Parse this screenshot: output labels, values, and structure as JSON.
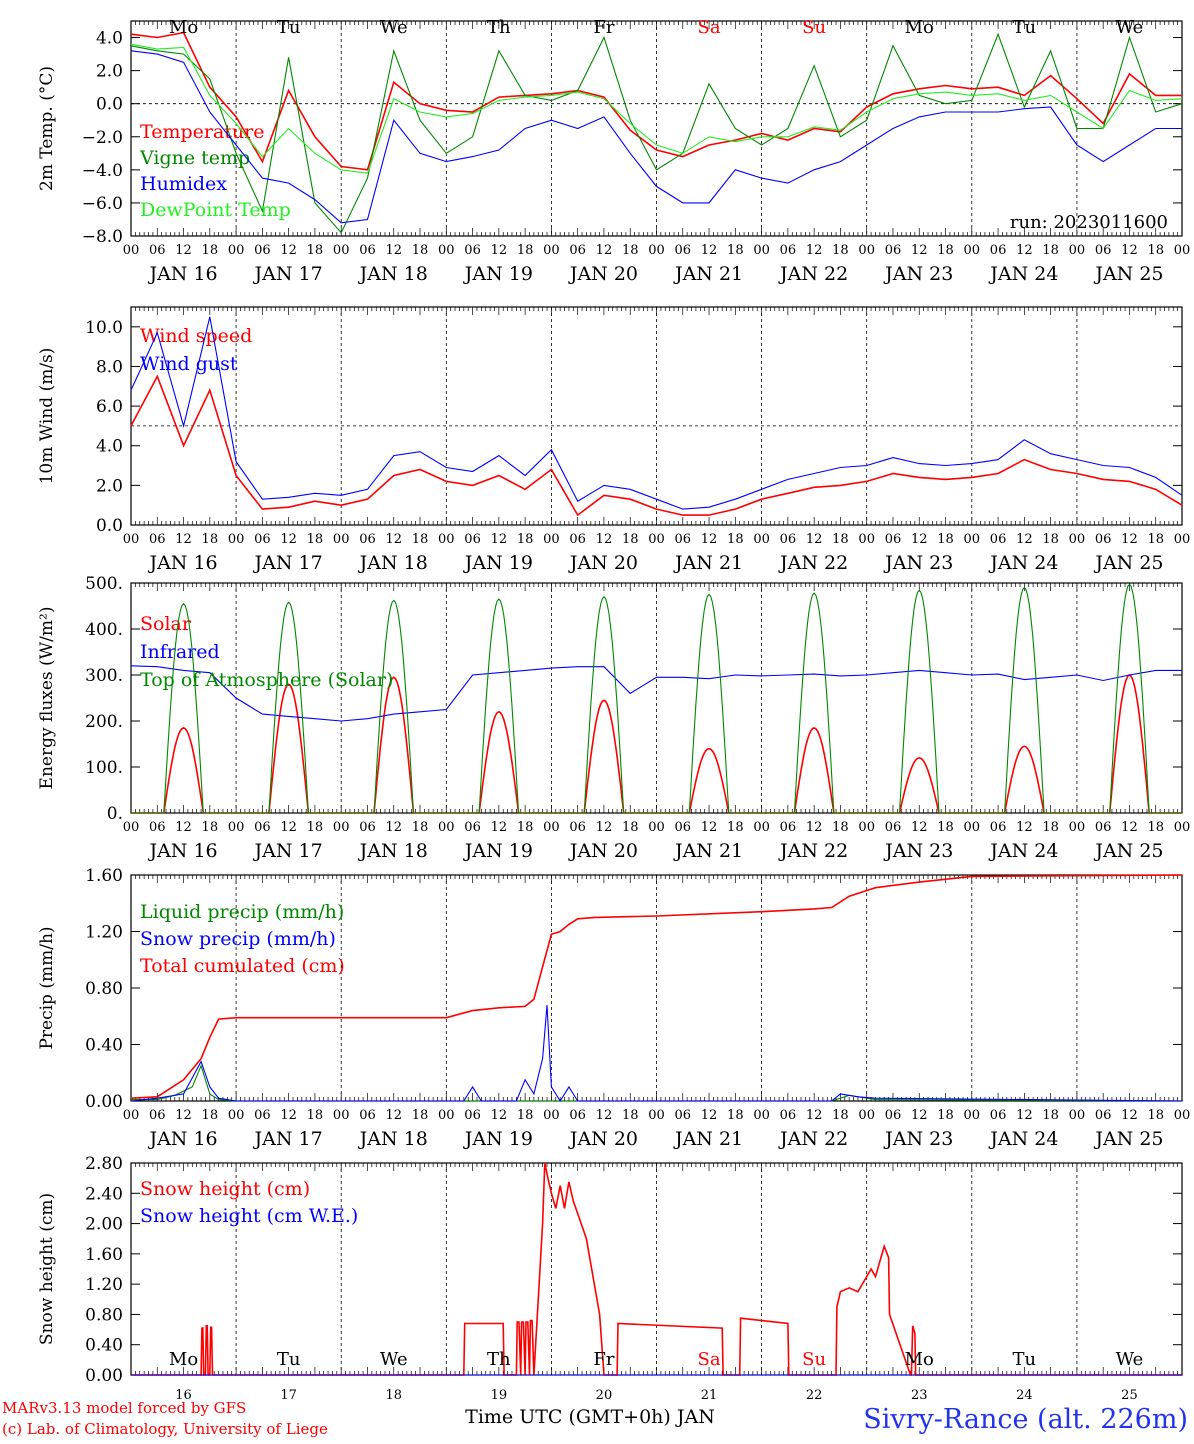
{
  "footer": {
    "model_line1": "MARv3.13 model forced by GFS",
    "model_line2": "(c) Lab. of Climatology, University of Liege",
    "xlabel": "Time UTC (GMT+0h) JAN",
    "station": "Sivry-Rance (alt. 226m)"
  },
  "colors": {
    "red": "#ff0000",
    "green": "#008800",
    "blue": "#0000ff",
    "lightgreen": "#22ee22",
    "black": "#000000"
  },
  "time_axis": {
    "hour_ticks": [
      "00",
      "06",
      "12",
      "18"
    ],
    "dates": [
      "JAN 16",
      "JAN 17",
      "JAN 18",
      "JAN 19",
      "JAN 20",
      "JAN 21",
      "JAN 22",
      "JAN 23",
      "JAN 24",
      "JAN 25"
    ],
    "weekdays": [
      "Mo",
      "Tu",
      "We",
      "Th",
      "Fr",
      "Sa",
      "Su",
      "Mo",
      "Tu",
      "We"
    ],
    "weekday_colors": [
      "black",
      "black",
      "black",
      "black",
      "black",
      "red",
      "red",
      "black",
      "black",
      "black"
    ],
    "day_numbers": [
      "16",
      "17",
      "18",
      "19",
      "20",
      "21",
      "22",
      "23",
      "24",
      "25"
    ]
  },
  "chart_data": [
    {
      "type": "line",
      "ylabel": "2m Temp. (°C)",
      "ylim": [
        -8,
        5
      ],
      "yticks": [
        "4.0",
        "2.0",
        "0.0",
        "−2.0",
        "−4.0",
        "−6.0",
        "−8.0"
      ],
      "ytick_values": [
        4,
        2,
        0,
        -2,
        -4,
        -6,
        -8
      ],
      "reference_line": 0,
      "annotation": "run: 2023011600",
      "x_hours": [
        0,
        6,
        12,
        18,
        24,
        30,
        36,
        42,
        48,
        54,
        60,
        66,
        72,
        78,
        84,
        90,
        96,
        102,
        108,
        114,
        120,
        126,
        132,
        138,
        144,
        150,
        156,
        162,
        168,
        174,
        180,
        186,
        192,
        198,
        204,
        210,
        216,
        222,
        228,
        234,
        240
      ],
      "series": [
        {
          "name": "Temperature",
          "color": "red",
          "values": [
            4.2,
            4.0,
            4.3,
            1.0,
            -0.8,
            -3.5,
            0.8,
            -2.0,
            -3.8,
            -4.0,
            1.3,
            0.0,
            -0.4,
            -0.5,
            0.4,
            0.5,
            0.6,
            0.8,
            0.4,
            -1.6,
            -2.8,
            -3.2,
            -2.5,
            -2.2,
            -1.8,
            -2.2,
            -1.5,
            -1.7,
            -0.2,
            0.6,
            0.9,
            1.1,
            0.9,
            1.0,
            0.5,
            1.7,
            0.3,
            -1.2,
            1.8,
            0.5,
            0.5
          ]
        },
        {
          "name": "Vigne temp",
          "color": "green",
          "values": [
            3.5,
            3.2,
            3.0,
            1.5,
            -3.0,
            -6.5,
            2.8,
            -6.0,
            -7.8,
            -4.5,
            3.2,
            -1.0,
            -3.0,
            -2.0,
            3.2,
            0.5,
            0.2,
            0.8,
            4.0,
            -1.0,
            -4.0,
            -3.0,
            1.2,
            -1.5,
            -2.5,
            -1.5,
            2.3,
            -2.0,
            -1.0,
            3.5,
            0.5,
            0.0,
            0.2,
            4.2,
            -0.2,
            3.2,
            -1.5,
            -1.5,
            4.0,
            -0.5,
            0.0
          ]
        },
        {
          "name": "Humidex",
          "color": "blue",
          "values": [
            3.2,
            3.0,
            2.5,
            -0.5,
            -2.5,
            -4.5,
            -4.8,
            -5.8,
            -7.2,
            -7.0,
            -1.0,
            -3.0,
            -3.5,
            -3.2,
            -2.8,
            -1.5,
            -1.0,
            -1.5,
            -0.8,
            -3.0,
            -5.0,
            -6.0,
            -6.0,
            -4.0,
            -4.5,
            -4.8,
            -4.0,
            -3.5,
            -2.5,
            -1.5,
            -0.8,
            -0.5,
            -0.5,
            -0.5,
            -0.3,
            -0.2,
            -2.5,
            -3.5,
            -2.5,
            -1.5,
            -1.5
          ]
        },
        {
          "name": "DewPoint Temp",
          "color": "lightgreen",
          "values": [
            3.6,
            3.3,
            3.4,
            0.5,
            -1.2,
            -3.2,
            -1.5,
            -3.0,
            -4.0,
            -4.2,
            0.3,
            -0.5,
            -0.8,
            -0.6,
            0.2,
            0.4,
            0.5,
            0.7,
            0.3,
            -1.2,
            -2.5,
            -3.0,
            -2.0,
            -2.3,
            -2.0,
            -2.0,
            -1.4,
            -1.6,
            -0.5,
            0.3,
            0.6,
            0.7,
            0.5,
            0.6,
            0.2,
            0.5,
            -0.5,
            -1.5,
            0.8,
            0.2,
            0.3
          ]
        }
      ]
    },
    {
      "type": "line",
      "ylabel": "10m Wind (m/s)",
      "ylim": [
        0,
        11
      ],
      "yticks": [
        "10.0",
        "8.0",
        "6.0",
        "4.0",
        "2.0",
        "0.0"
      ],
      "ytick_values": [
        10,
        8,
        6,
        4,
        2,
        0
      ],
      "reference_line": 5,
      "x_hours": [
        0,
        6,
        12,
        18,
        24,
        30,
        36,
        42,
        48,
        54,
        60,
        66,
        72,
        78,
        84,
        90,
        96,
        102,
        108,
        114,
        120,
        126,
        132,
        138,
        144,
        150,
        156,
        162,
        168,
        174,
        180,
        186,
        192,
        198,
        204,
        210,
        216,
        222,
        228,
        234,
        240
      ],
      "series": [
        {
          "name": "Wind speed",
          "color": "red",
          "values": [
            5.0,
            7.5,
            4.0,
            6.8,
            2.5,
            0.8,
            0.9,
            1.2,
            1.0,
            1.3,
            2.5,
            2.8,
            2.2,
            2.0,
            2.5,
            1.8,
            2.8,
            0.5,
            1.5,
            1.3,
            0.8,
            0.5,
            0.5,
            0.8,
            1.3,
            1.6,
            1.9,
            2.0,
            2.2,
            2.6,
            2.4,
            2.3,
            2.4,
            2.6,
            3.3,
            2.8,
            2.6,
            2.3,
            2.2,
            1.8,
            1.0
          ]
        },
        {
          "name": "Wind gust",
          "color": "blue",
          "values": [
            6.8,
            9.7,
            5.0,
            10.5,
            3.2,
            1.3,
            1.4,
            1.6,
            1.5,
            1.8,
            3.5,
            3.7,
            2.9,
            2.7,
            3.5,
            2.5,
            3.8,
            1.2,
            2.0,
            1.8,
            1.3,
            0.8,
            0.9,
            1.3,
            1.8,
            2.3,
            2.6,
            2.9,
            3.0,
            3.4,
            3.1,
            3.0,
            3.1,
            3.3,
            4.3,
            3.6,
            3.3,
            3.0,
            2.9,
            2.4,
            1.5
          ]
        }
      ]
    },
    {
      "type": "line",
      "ylabel": "Energy fluxes (W/m²)",
      "ylim": [
        0,
        500
      ],
      "yticks": [
        "500.",
        "400.",
        "300.",
        "200.",
        "100.",
        "0."
      ],
      "ytick_values": [
        500,
        400,
        300,
        200,
        100,
        0
      ],
      "sun_rise_hour": 7.5,
      "sun_set_hour": 16.5,
      "series": [
        {
          "name": "Solar",
          "color": "red",
          "daily_peaks": [
            185,
            280,
            295,
            220,
            245,
            140,
            185,
            120,
            145,
            300
          ]
        },
        {
          "name": "Infrared",
          "color": "blue",
          "x_hours": [
            0,
            6,
            12,
            18,
            24,
            30,
            36,
            42,
            48,
            54,
            60,
            66,
            72,
            78,
            84,
            90,
            96,
            102,
            108,
            114,
            120,
            126,
            132,
            138,
            144,
            150,
            156,
            162,
            168,
            174,
            180,
            186,
            192,
            198,
            204,
            210,
            216,
            222,
            228,
            234,
            240
          ],
          "values": [
            320,
            318,
            310,
            305,
            250,
            215,
            210,
            205,
            200,
            205,
            215,
            220,
            225,
            300,
            305,
            310,
            315,
            318,
            318,
            260,
            295,
            295,
            292,
            300,
            298,
            300,
            302,
            298,
            300,
            305,
            310,
            305,
            300,
            302,
            290,
            295,
            300,
            288,
            300,
            310,
            310
          ]
        },
        {
          "name": "Top of Atmosphere (Solar)",
          "color": "green",
          "daily_peaks": [
            455,
            458,
            462,
            465,
            470,
            475,
            478,
            484,
            490,
            497
          ]
        }
      ]
    },
    {
      "type": "line",
      "ylabel": "Precip (mm/h)",
      "ylim": [
        0,
        1.6
      ],
      "yticks": [
        "1.60",
        "1.20",
        "0.80",
        "0.40",
        "0.00"
      ],
      "ytick_values": [
        1.6,
        1.2,
        0.8,
        0.4,
        0
      ],
      "series": [
        {
          "name": "Liquid precip (mm/h)",
          "color": "green",
          "x_hours": [
            0,
            6,
            10,
            14,
            16,
            18,
            20,
            24,
            72,
            160,
            164,
            170,
            240
          ],
          "values": [
            0.01,
            0.01,
            0.04,
            0.1,
            0.25,
            0.05,
            0.01,
            0.0,
            0.0,
            0.0,
            0.04,
            0.01,
            0.0
          ]
        },
        {
          "name": "Snow precip (mm/h)",
          "color": "blue",
          "x_hours": [
            0,
            6,
            12,
            16,
            18,
            20,
            24,
            76,
            78,
            80,
            88,
            90,
            92,
            94,
            95,
            96,
            98,
            100,
            102,
            104,
            160,
            162,
            166,
            170,
            240
          ],
          "values": [
            0.0,
            0.02,
            0.05,
            0.28,
            0.1,
            0.02,
            0.0,
            0.0,
            0.1,
            0.0,
            0.0,
            0.15,
            0.05,
            0.3,
            0.68,
            0.1,
            0.0,
            0.1,
            0.0,
            0.0,
            0.0,
            0.05,
            0.03,
            0.02,
            0.0
          ]
        },
        {
          "name": "Total cumulated (cm)",
          "color": "red",
          "x_hours": [
            0,
            6,
            12,
            16,
            18,
            20,
            24,
            48,
            72,
            78,
            84,
            90,
            92,
            94,
            96,
            98,
            100,
            102,
            106,
            120,
            144,
            156,
            160,
            164,
            170,
            180,
            192,
            240
          ],
          "values": [
            0.02,
            0.03,
            0.15,
            0.3,
            0.45,
            0.58,
            0.59,
            0.59,
            0.59,
            0.64,
            0.66,
            0.67,
            0.72,
            0.95,
            1.18,
            1.2,
            1.25,
            1.29,
            1.3,
            1.31,
            1.34,
            1.36,
            1.37,
            1.45,
            1.51,
            1.55,
            1.59,
            1.6
          ]
        }
      ]
    },
    {
      "type": "line",
      "ylabel": "Snow height (cm)",
      "ylim": [
        0,
        2.8
      ],
      "yticks": [
        "2.80",
        "2.40",
        "2.00",
        "1.60",
        "1.20",
        "0.80",
        "0.40",
        "0.00"
      ],
      "ytick_values": [
        2.8,
        2.4,
        2.0,
        1.6,
        1.2,
        0.8,
        0.4,
        0
      ],
      "series": [
        {
          "name": "Snow height (cm)",
          "color": "red",
          "x_hours": [
            0,
            16.0,
            16.2,
            16.4,
            16.6,
            17.0,
            17.2,
            17.4,
            17.6,
            18.0,
            18.2,
            18.4,
            18.6,
            19,
            76,
            76.2,
            85,
            85.2,
            88,
            88.2,
            88.6,
            89.0,
            89.2,
            89.6,
            90.0,
            90.2,
            90.6,
            91,
            91.2,
            91.6,
            92,
            94,
            94.5,
            95.2,
            96,
            97,
            98,
            99,
            100,
            101,
            104,
            107,
            108,
            108.2,
            111,
            111.2,
            135,
            135.2,
            139,
            139.2,
            150,
            150.2,
            161,
            161.2,
            162,
            164,
            166,
            168,
            169,
            170,
            172,
            173,
            173.2,
            178,
            178.2,
            178.5,
            179,
            179.2,
            240
          ],
          "values": [
            0,
            0,
            0.62,
            0.62,
            0,
            0,
            0.65,
            0.65,
            0,
            0,
            0.63,
            0.63,
            0,
            0,
            0,
            0.68,
            0.68,
            0,
            0,
            0.7,
            0.7,
            0,
            0.7,
            0.7,
            0,
            0.7,
            0.7,
            0,
            0.72,
            0.72,
            0,
            2.0,
            2.8,
            2.6,
            2.4,
            2.2,
            2.5,
            2.2,
            2.55,
            2.3,
            1.8,
            0.8,
            0,
            0,
            0,
            0.68,
            0.62,
            0,
            0,
            0.75,
            0.68,
            0,
            0,
            0.9,
            1.1,
            1.15,
            1.1,
            1.3,
            1.4,
            1.3,
            1.7,
            1.55,
            0.8,
            0,
            0,
            0.65,
            0.55,
            0,
            0
          ]
        },
        {
          "name": "Snow height (cm W.E.)",
          "color": "blue",
          "x_hours": [
            0,
            240
          ],
          "values": [
            0,
            0
          ]
        }
      ]
    }
  ]
}
